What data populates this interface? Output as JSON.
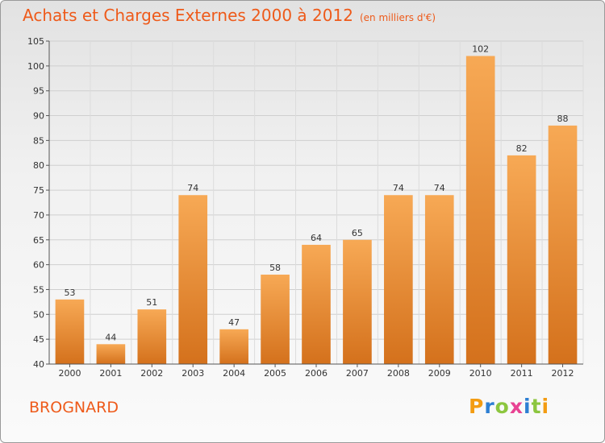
{
  "header": {
    "title": "Achats et Charges Externes 2000 à 2012",
    "unit": "(en milliers d'€)"
  },
  "footer": {
    "commune": "BROGNARD"
  },
  "logo": {
    "letters": [
      "P",
      "r",
      "o",
      "x",
      "i",
      "t",
      "i"
    ],
    "colors": [
      "#f39c12",
      "#2d7fd3",
      "#8cc63f",
      "#e84393",
      "#2d7fd3",
      "#8cc63f",
      "#f39c12"
    ]
  },
  "chart_data": {
    "type": "bar",
    "title": "Achats et Charges Externes 2000 à 2012",
    "categories": [
      "2000",
      "2001",
      "2002",
      "2003",
      "2004",
      "2005",
      "2006",
      "2007",
      "2008",
      "2009",
      "2010",
      "2011",
      "2012"
    ],
    "values": [
      53,
      44,
      51,
      74,
      47,
      58,
      64,
      65,
      74,
      74,
      102,
      82,
      88
    ],
    "ylim": [
      40,
      105
    ],
    "yticks": [
      40,
      45,
      50,
      55,
      60,
      65,
      70,
      75,
      80,
      85,
      90,
      95,
      100,
      105
    ],
    "grid": true,
    "bar_color_top": "#f7a955",
    "bar_color_bottom": "#d4711c"
  }
}
